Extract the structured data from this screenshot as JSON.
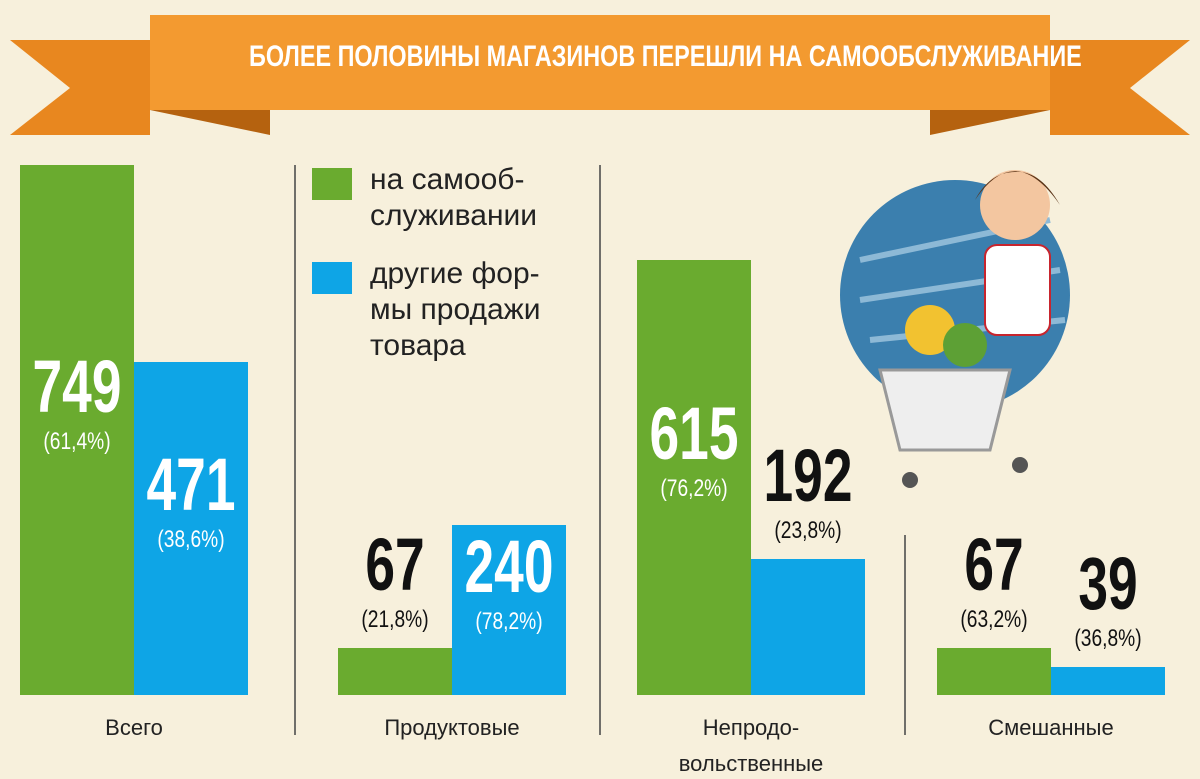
{
  "chart_data": {
    "type": "bar",
    "title": "БОЛЕЕ ПОЛОВИНЫ МАГАЗИНОВ ПЕРЕШЛИ НА САМООБСЛУЖИВАНИЕ",
    "categories": [
      "Всего",
      "Продуктовые",
      "Непродо-\nвольственные",
      "Смешанные"
    ],
    "series": [
      {
        "name": "на самооб-\nслуживании",
        "color": "#6aab2f",
        "values": [
          749,
          67,
          615,
          67
        ],
        "share_labels": [
          "(61,4%)",
          "(21,8%)",
          "(76,2%)",
          "(63,2%)"
        ]
      },
      {
        "name": "другие фор-\nмы продажи\nтовара",
        "color": "#0ea5e6",
        "values": [
          471,
          240,
          192,
          39
        ],
        "share_labels": [
          "(38,6%)",
          "(78,2%)",
          "(23,8%)",
          "(36,8%)"
        ]
      }
    ]
  }
}
